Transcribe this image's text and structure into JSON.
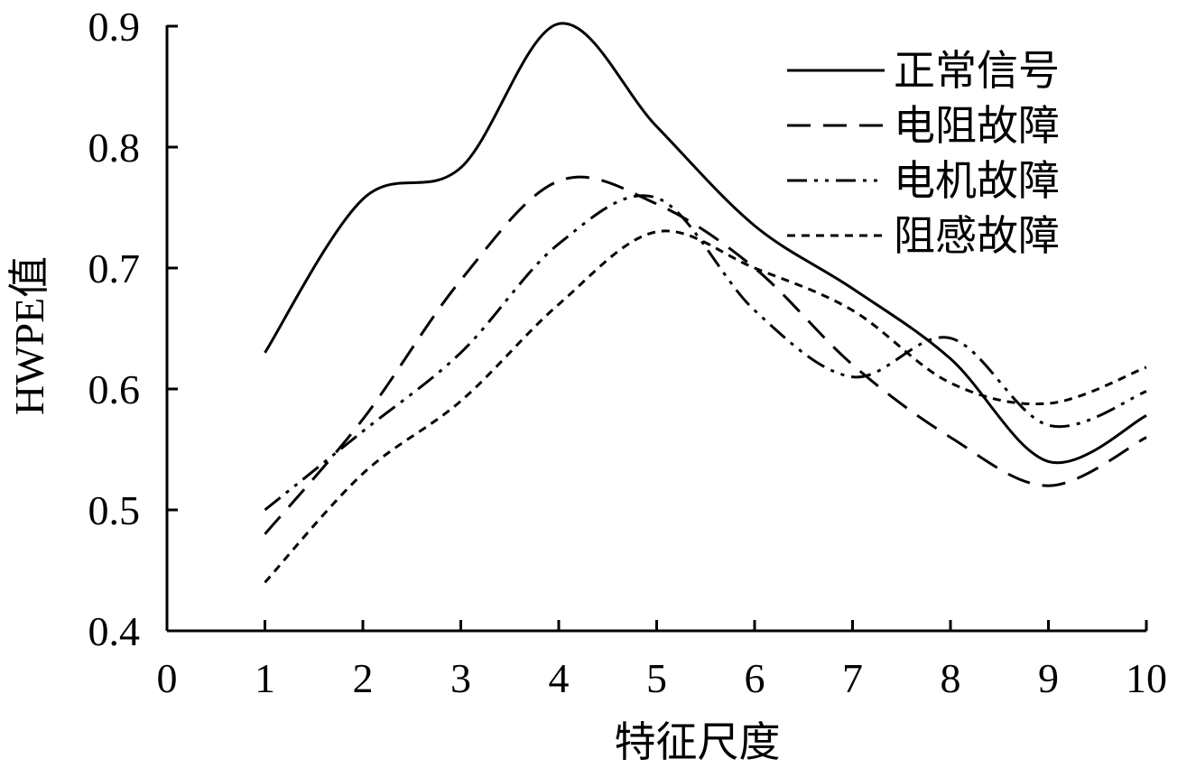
{
  "chart_data": {
    "type": "line",
    "title": "",
    "xlabel": "特征尺度",
    "ylabel": "HWPE值",
    "xlim": [
      0,
      10
    ],
    "ylim": [
      0.4,
      0.9
    ],
    "x_ticks": [
      "0",
      "1",
      "2",
      "3",
      "4",
      "5",
      "6",
      "7",
      "8",
      "9",
      "10"
    ],
    "y_ticks": [
      "0.4",
      "0.5",
      "0.6",
      "0.7",
      "0.8",
      "0.9"
    ],
    "grid": false,
    "legend_position": "top-right",
    "x": [
      1,
      2,
      3,
      4,
      5,
      6,
      7,
      8,
      9,
      10
    ],
    "series": [
      {
        "name": "正常信号",
        "style": "solid",
        "color": "#000000",
        "values": [
          0.63,
          0.757,
          0.783,
          0.902,
          0.817,
          0.735,
          0.683,
          0.625,
          0.54,
          0.578
        ]
      },
      {
        "name": "电阻故障",
        "style": "dashed",
        "color": "#000000",
        "values": [
          0.48,
          0.575,
          0.69,
          0.772,
          0.753,
          0.7,
          0.62,
          0.56,
          0.52,
          0.56
        ]
      },
      {
        "name": "电机故障",
        "style": "dash-dot-dot",
        "color": "#000000",
        "values": [
          0.5,
          0.565,
          0.63,
          0.72,
          0.758,
          0.665,
          0.61,
          0.642,
          0.57,
          0.598
        ]
      },
      {
        "name": "阻感故障",
        "style": "dotted",
        "color": "#000000",
        "values": [
          0.44,
          0.53,
          0.59,
          0.67,
          0.73,
          0.7,
          0.665,
          0.605,
          0.588,
          0.618
        ]
      }
    ]
  }
}
